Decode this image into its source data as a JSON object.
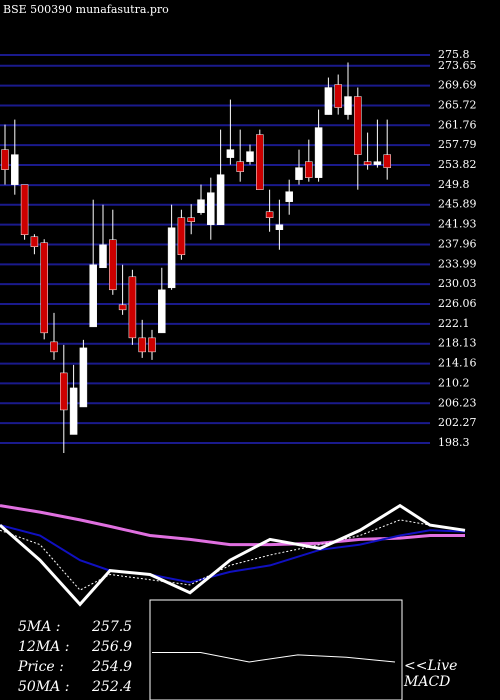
{
  "chart_data": [
    {
      "type": "candlestick",
      "title": "BSE 500390  munafasutra.pro",
      "open": [
        256.9,
        249.9,
        249.9,
        239.5,
        238.3,
        218.5,
        212.3,
        200,
        205.5,
        221.5,
        233.3,
        238.9,
        225.9,
        231.5,
        219.3,
        219.3,
        220.3,
        229.3,
        243.3,
        243.3,
        244.3,
        241.9,
        241.9,
        255.3,
        254.5,
        254.5,
        259.9,
        244.5,
        240.9,
        246.5,
        250.9,
        254.5,
        251.3,
        263.9,
        269.9,
        263.9,
        267.5,
        254.5,
        253.9,
        255.9
      ],
      "high": [
        261.9,
        262.9,
        249.9,
        240,
        239,
        224.3,
        217.9,
        213.9,
        218.9,
        246.9,
        245.9,
        244.9,
        233.9,
        232.9,
        222.9,
        220.9,
        233.3,
        245.9,
        244.9,
        246,
        249.9,
        251.3,
        260.9,
        266.9,
        260.9,
        257.9,
        260.9,
        248.9,
        246.9,
        250.9,
        256.9,
        258.9,
        264.9,
        271.3,
        271.9,
        274.3,
        269.3,
        260.3,
        262.9,
        262.9
      ],
      "low": [
        249.9,
        247.9,
        238.9,
        236,
        219,
        214.9,
        196.3,
        200,
        205.5,
        221.5,
        233.3,
        227.9,
        223.9,
        217.9,
        215.3,
        214.9,
        220.3,
        228.9,
        234.9,
        240,
        243.9,
        238.9,
        241.9,
        253.9,
        250.5,
        253.9,
        248.9,
        240.5,
        236.9,
        243.9,
        249.9,
        250.5,
        250.5,
        263.9,
        263.9,
        262.9,
        248.9,
        252.9,
        253.3,
        250.9
      ],
      "close": [
        252.9,
        255.9,
        239.9,
        237.5,
        220.3,
        216.5,
        204.9,
        209.3,
        217.3,
        233.9,
        237.9,
        228.9,
        224.9,
        219.3,
        216.5,
        216.5,
        228.9,
        241.3,
        235.9,
        242.5,
        246.9,
        248.3,
        251.9,
        256.9,
        252.5,
        256.5,
        248.9,
        243.3,
        241.9,
        248.5,
        253.3,
        251.3,
        261.3,
        269.3,
        265.3,
        267.5,
        255.9,
        253.9,
        254.5,
        253.3
      ],
      "up_color": "#ffffff",
      "down_color": "#cc0000",
      "grid_color": "#1a1a8c",
      "ylim": [
        196.3,
        277.8
      ],
      "yticks": [
        275.8,
        273.65,
        269.69,
        265.72,
        261.76,
        257.79,
        253.82,
        249.8,
        245.89,
        241.93,
        237.96,
        233.99,
        230.03,
        226.06,
        222.1,
        218.13,
        214.16,
        210.2,
        206.23,
        202.27,
        198.3
      ],
      "grid": true
    },
    {
      "type": "line",
      "x": [
        0,
        40,
        80,
        110,
        150,
        190,
        230,
        270,
        320,
        360,
        400,
        430,
        465
      ],
      "xlim": [
        0,
        465
      ],
      "ylim": [
        0,
        100
      ],
      "series": [
        {
          "color": "#e070e0",
          "width": 3,
          "values": [
            88,
            83,
            77,
            72,
            65,
            62,
            58,
            58,
            59,
            62,
            63,
            65,
            65
          ]
        },
        {
          "color": "#1010c0",
          "width": 2,
          "values": [
            73,
            65,
            46,
            38,
            35,
            29,
            37,
            42,
            54,
            58,
            65,
            69,
            68
          ]
        },
        {
          "color": "#ffffff",
          "width": 1,
          "dash": true,
          "values": [
            69,
            58,
            23,
            35,
            31,
            27,
            42,
            50,
            58,
            65,
            77,
            73,
            69
          ]
        },
        {
          "color": "#ffffff",
          "width": 3,
          "values": [
            73,
            46,
            12,
            38,
            35,
            21,
            46,
            62,
            55,
            69,
            88,
            73,
            69
          ]
        }
      ]
    },
    {
      "type": "line",
      "x": [
        0,
        20,
        40,
        60,
        80,
        100
      ],
      "xlim": [
        0,
        100
      ],
      "ylim": [
        -10,
        10
      ],
      "series": [
        {
          "color": "#ffffff",
          "width": 1,
          "values": [
            0,
            0,
            -2,
            -0.5,
            -1,
            -2
          ]
        }
      ]
    }
  ],
  "stats": [
    {
      "label": "5MA :",
      "value": 257.5
    },
    {
      "label": "12MA :",
      "value": 256.9
    },
    {
      "label": "Price  :",
      "value": 254.9
    },
    {
      "label": "50MA :",
      "value": 252.4
    }
  ],
  "live": "<<Live",
  "macd": "MACD"
}
